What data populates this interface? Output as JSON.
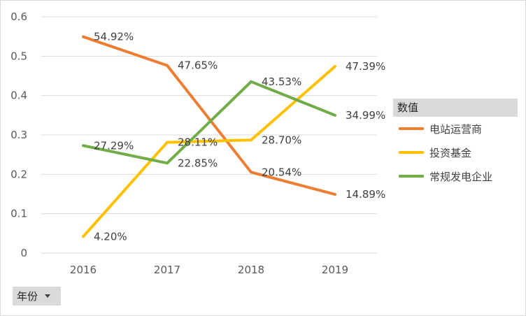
{
  "chart_data": {
    "type": "line",
    "categories": [
      "2016",
      "2017",
      "2018",
      "2019"
    ],
    "ylim": [
      0,
      0.6
    ],
    "yticks": [
      0,
      0.1,
      0.2,
      0.3,
      0.4,
      0.5,
      0.6
    ],
    "ytick_labels": [
      "0",
      "0.1",
      "0.2",
      "0.3",
      "0.4",
      "0.5",
      "0.6"
    ],
    "grid": true,
    "legend_position": "right",
    "legend_title": "数值",
    "series": [
      {
        "name": "电站运营商",
        "color": "#ED7D31",
        "values": [
          0.5492,
          0.4765,
          0.2054,
          0.1489
        ],
        "labels": [
          "54.92%",
          "47.65%",
          "20.54%",
          "14.89%"
        ]
      },
      {
        "name": "投资基金",
        "color": "#FFC000",
        "values": [
          0.042,
          0.2811,
          0.287,
          0.4739
        ],
        "labels": [
          "4.20%",
          "28.11%",
          "28.70%",
          "47.39%"
        ]
      },
      {
        "name": "常规发电企业",
        "color": "#70AD47",
        "values": [
          0.2729,
          0.2285,
          0.4353,
          0.3499
        ],
        "labels": [
          "27.29%",
          "22.85%",
          "43.53%",
          "34.99%"
        ]
      }
    ]
  },
  "filter": {
    "label": "年份"
  }
}
